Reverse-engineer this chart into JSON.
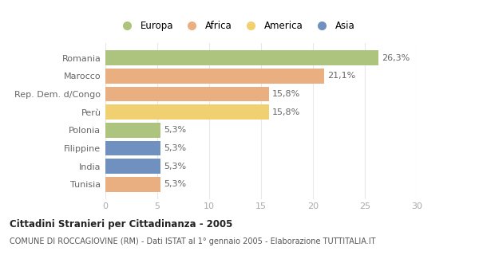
{
  "categories": [
    "Romania",
    "Marocco",
    "Rep. Dem. d/Congo",
    "Perù",
    "Polonia",
    "Filippine",
    "India",
    "Tunisia"
  ],
  "values": [
    26.3,
    21.1,
    15.8,
    15.8,
    5.3,
    5.3,
    5.3,
    5.3
  ],
  "labels": [
    "26,3%",
    "21,1%",
    "15,8%",
    "15,8%",
    "5,3%",
    "5,3%",
    "5,3%",
    "5,3%"
  ],
  "colors": [
    "#adc47e",
    "#eaaf80",
    "#eaaf80",
    "#f0d070",
    "#adc47e",
    "#7090c0",
    "#7090c0",
    "#eaaf80"
  ],
  "legend": [
    {
      "label": "Europa",
      "color": "#adc47e"
    },
    {
      "label": "Africa",
      "color": "#eaaf80"
    },
    {
      "label": "America",
      "color": "#f0d070"
    },
    {
      "label": "Asia",
      "color": "#7090c0"
    }
  ],
  "xlim": [
    0,
    30
  ],
  "xticks": [
    0,
    5,
    10,
    15,
    20,
    25,
    30
  ],
  "title_bold": "Cittadini Stranieri per Cittadinanza - 2005",
  "subtitle": "COMUNE DI ROCCAGIOVINE (RM) - Dati ISTAT al 1° gennaio 2005 - Elaborazione TUTTITALIA.IT",
  "background_color": "#ffffff",
  "bar_background": "#ffffff"
}
